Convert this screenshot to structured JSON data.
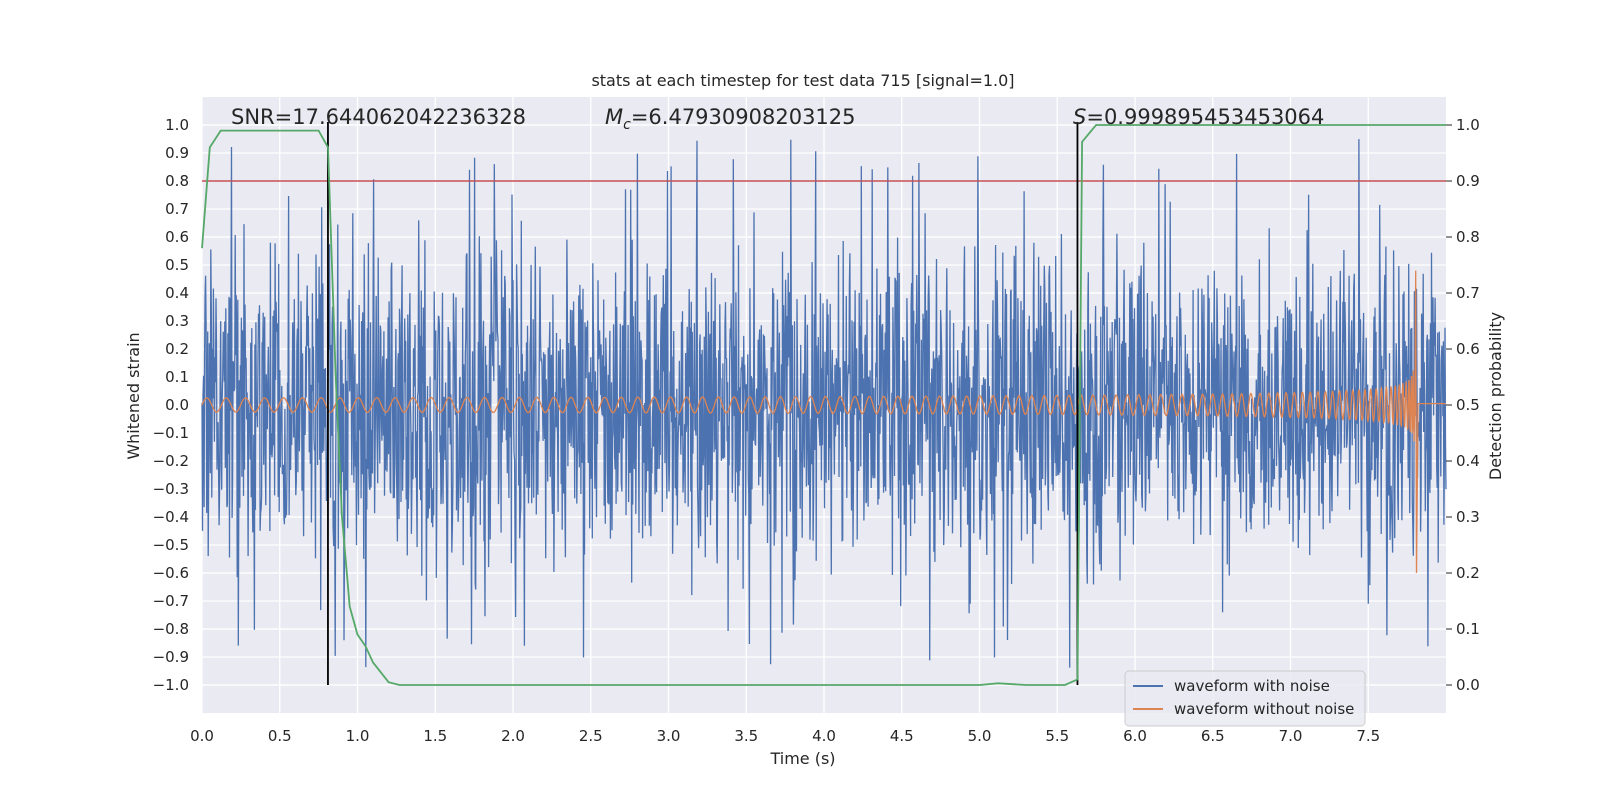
{
  "chart_data": {
    "type": "line",
    "title": "stats at each timestep for test data 715 [signal=1.0]",
    "xlabel": "Time (s)",
    "ylabel_left": "Whitened strain",
    "ylabel_right": "Detection probability",
    "xlim": [
      0.0,
      8.0
    ],
    "ylim_left": [
      -1.1,
      1.1
    ],
    "ylim_right": [
      -0.05,
      1.05
    ],
    "x_ticks": [
      0.0,
      0.5,
      1.0,
      1.5,
      2.0,
      2.5,
      3.0,
      3.5,
      4.0,
      4.5,
      5.0,
      5.5,
      6.0,
      6.5,
      7.0,
      7.5
    ],
    "x_tick_labels": [
      "0.0",
      "0.5",
      "1.0",
      "1.5",
      "2.0",
      "2.5",
      "3.0",
      "3.5",
      "4.0",
      "4.5",
      "5.0",
      "5.5",
      "6.0",
      "6.5",
      "7.0",
      "7.5"
    ],
    "y_left_ticks": [
      1.0,
      0.9,
      0.8,
      0.7,
      0.6,
      0.5,
      0.4,
      0.3,
      0.2,
      0.1,
      0.0,
      -0.1,
      -0.2,
      -0.3,
      -0.4,
      -0.5,
      -0.6,
      -0.7,
      -0.8,
      -0.9,
      -1.0
    ],
    "y_left_tick_labels": [
      "1.0",
      "0.9",
      "0.8",
      "0.7",
      "0.6",
      "0.5",
      "0.4",
      "0.3",
      "0.2",
      "0.1",
      "0.0",
      "−0.1",
      "−0.2",
      "−0.3",
      "−0.4",
      "−0.5",
      "−0.6",
      "−0.7",
      "−0.8",
      "−0.9",
      "−1.0"
    ],
    "y_right_ticks": [
      1.0,
      0.9,
      0.8,
      0.7,
      0.6,
      0.5,
      0.4,
      0.3,
      0.2,
      0.1,
      0.0
    ],
    "y_right_tick_labels": [
      "1.0",
      "0.9",
      "0.8",
      "0.7",
      "0.6",
      "0.5",
      "0.4",
      "0.3",
      "0.2",
      "0.1",
      "0.0"
    ],
    "annotations": {
      "snr": "SNR=17.644062042236328",
      "mc_symbol": "M",
      "mc_subscript": "c",
      "mc_value": "=6.47930908203125",
      "s_symbol": "S",
      "s_value": "=0.999895453453064"
    },
    "threshold_probability": 0.9,
    "vertical_markers_s": [
      0.81,
      5.63
    ],
    "series": [
      {
        "name": "waveform with noise",
        "axis": "left",
        "color": "#4c72b0",
        "description_envelope": {
          "typical_amplitude": 0.45,
          "peak_max": 0.97,
          "peak_min": -0.98,
          "t_end": 8.0
        }
      },
      {
        "name": "waveform without noise",
        "axis": "left",
        "color": "#dd8452",
        "chirp": {
          "t_start": 0.0,
          "t_merger": 7.8,
          "amp_start": 0.025,
          "amp_peak_pos": 0.48,
          "amp_peak_neg": -0.6,
          "ringdown_offset": 0.005
        }
      },
      {
        "name": "detection probability",
        "axis": "right",
        "color": "#55a868",
        "x": [
          0.0,
          0.05,
          0.12,
          0.2,
          0.3,
          0.5,
          0.75,
          0.81,
          0.86,
          0.9,
          0.95,
          1.0,
          1.05,
          1.1,
          1.2,
          1.27,
          1.5,
          2.0,
          3.0,
          4.0,
          5.0,
          5.12,
          5.3,
          5.55,
          5.63,
          5.66,
          5.75,
          6.0,
          7.0,
          8.0
        ],
        "y": [
          0.78,
          0.96,
          0.99,
          0.99,
          0.99,
          0.99,
          0.99,
          0.96,
          0.55,
          0.3,
          0.14,
          0.09,
          0.07,
          0.04,
          0.005,
          0.0,
          0.0,
          0.0,
          0.0,
          0.0,
          0.0,
          0.003,
          0.0,
          0.0,
          0.01,
          0.97,
          1.0,
          1.0,
          1.0,
          1.0
        ]
      }
    ],
    "legend": {
      "location": "lower-right",
      "entries": [
        "waveform with noise",
        "waveform without noise"
      ]
    },
    "colors": {
      "background": "#eaeaf2",
      "grid": "#ffffff",
      "threshold": "#c44e52",
      "marker": "#000000"
    }
  }
}
